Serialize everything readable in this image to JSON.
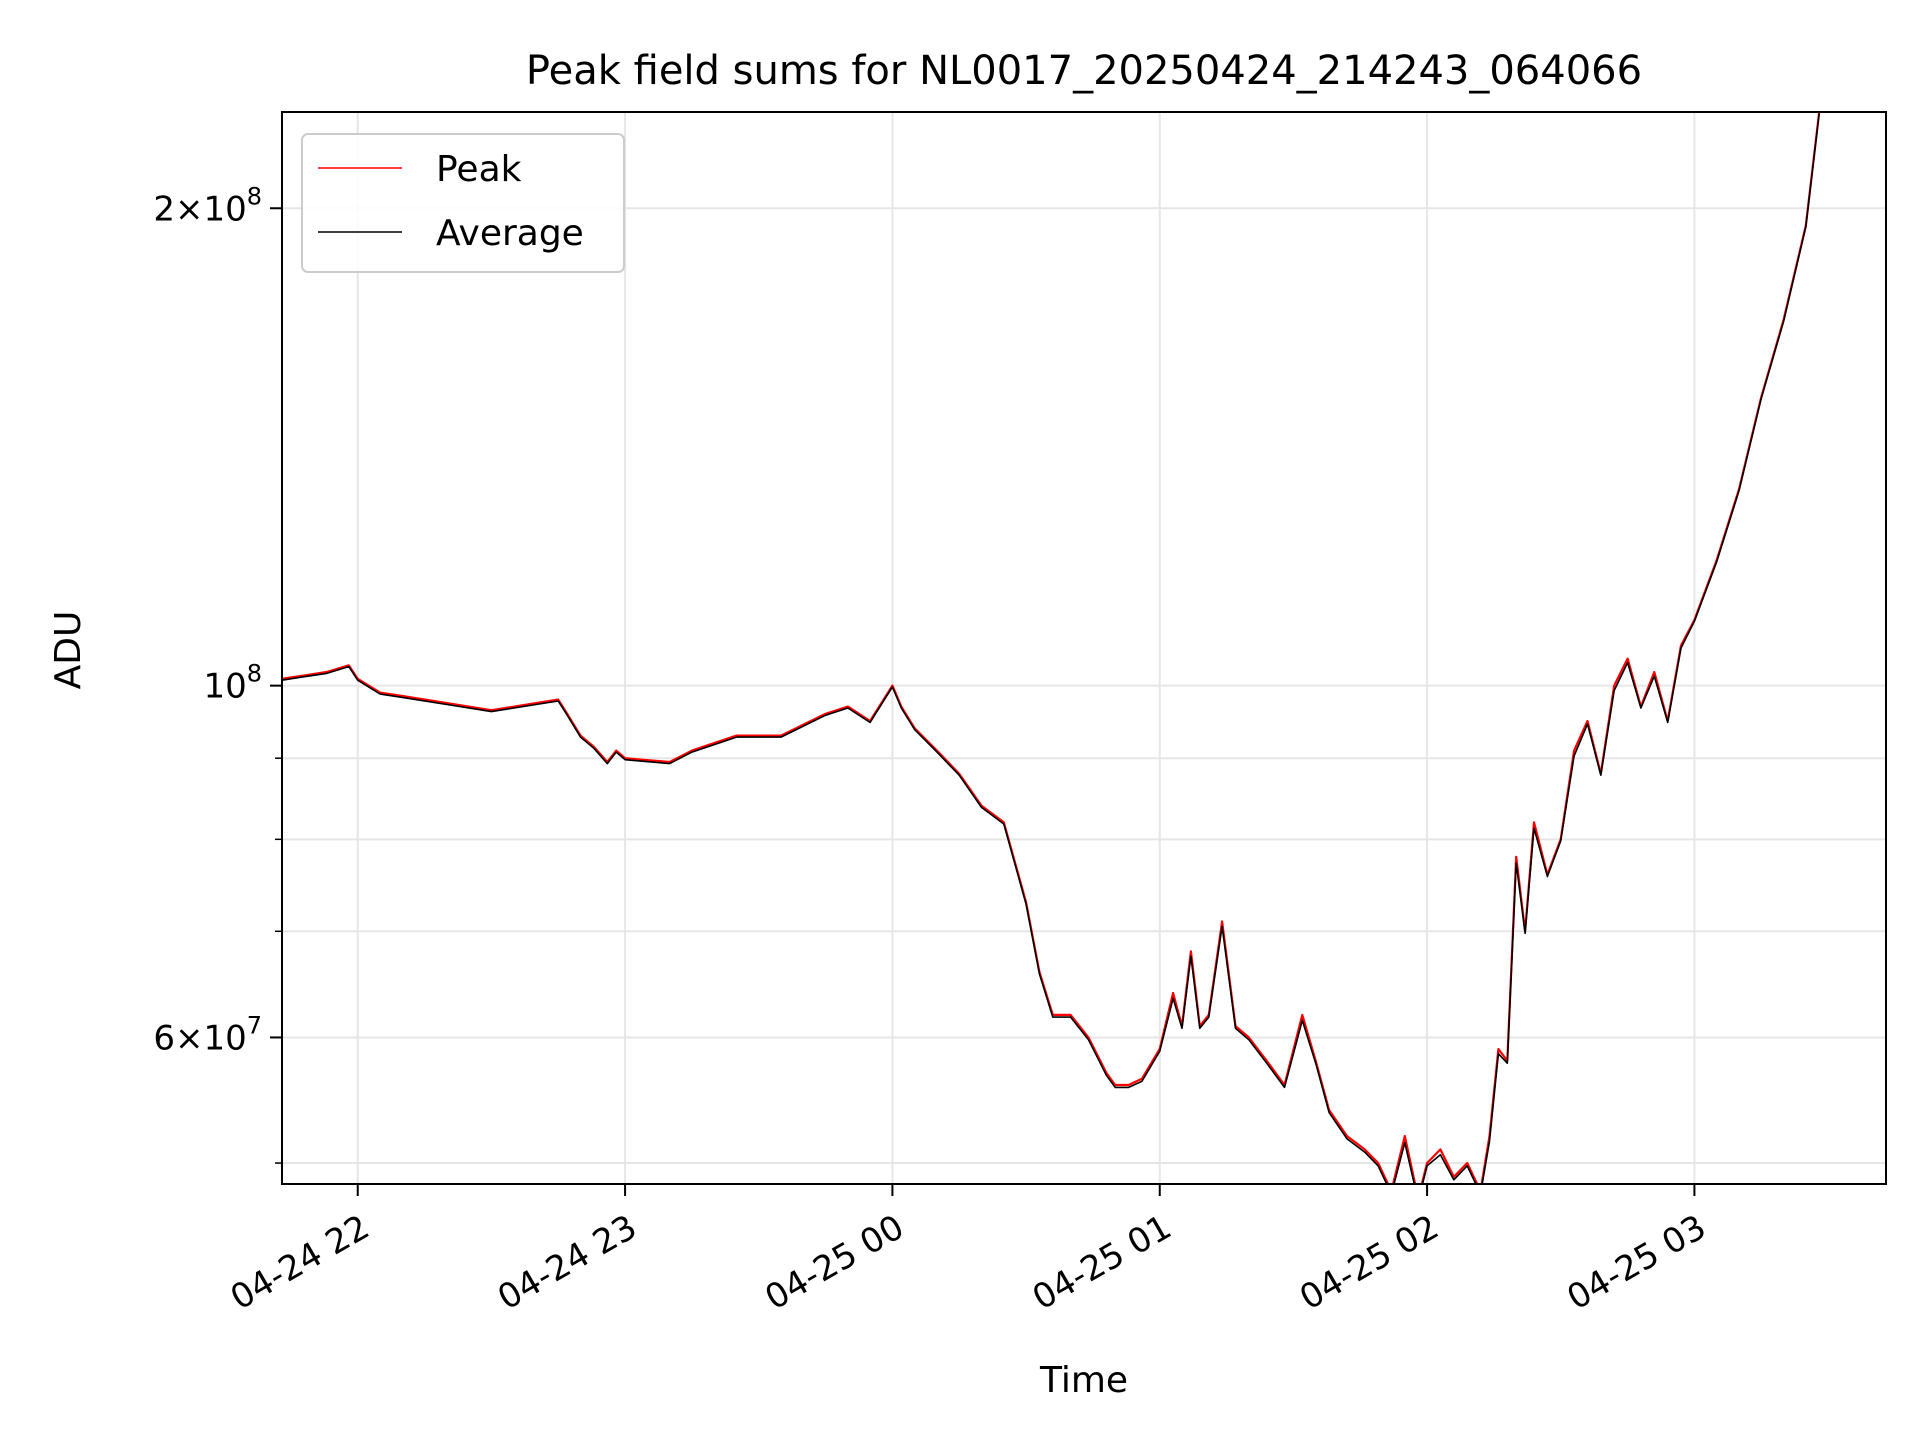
{
  "chart_data": {
    "type": "line",
    "title": "Peak field sums for NL0017_20250424_214243_064066",
    "xlabel": "Time",
    "ylabel": "ADU",
    "x_axis": {
      "type": "datetime",
      "range": [
        "2025-04-24 21:43",
        "2025-04-25 03:43"
      ],
      "ticks": [
        {
          "value": "2025-04-24 22:00",
          "label": "04-24 22"
        },
        {
          "value": "2025-04-24 23:00",
          "label": "04-24 23"
        },
        {
          "value": "2025-04-25 00:00",
          "label": "04-25 00"
        },
        {
          "value": "2025-04-25 01:00",
          "label": "04-25 01"
        },
        {
          "value": "2025-04-25 02:00",
          "label": "04-25 02"
        },
        {
          "value": "2025-04-25 03:00",
          "label": "04-25 03"
        }
      ]
    },
    "y_axis": {
      "scale": "log",
      "range": [
        48500000,
        230000000
      ],
      "major_ticks": [
        {
          "value": 60000000,
          "mantissa": "6",
          "exponent": "7"
        },
        {
          "value": 100000000,
          "mantissa": "",
          "exponent": "8"
        },
        {
          "value": 200000000,
          "mantissa": "2",
          "exponent": "8"
        }
      ],
      "minor_ticks": [
        50000000,
        70000000,
        80000000,
        90000000
      ]
    },
    "grid": true,
    "legend_position": "upper-left",
    "series": [
      {
        "name": "Peak",
        "color": "#ff0000",
        "x": [
          "2025-04-24 21:43",
          "2025-04-24 21:48",
          "2025-04-24 21:53",
          "2025-04-24 21:58",
          "2025-04-24 22:00",
          "2025-04-24 22:05",
          "2025-04-24 22:10",
          "2025-04-24 22:20",
          "2025-04-24 22:30",
          "2025-04-24 22:40",
          "2025-04-24 22:45",
          "2025-04-24 22:47",
          "2025-04-24 22:50",
          "2025-04-24 22:53",
          "2025-04-24 22:56",
          "2025-04-24 22:58",
          "2025-04-24 23:00",
          "2025-04-24 23:10",
          "2025-04-24 23:15",
          "2025-04-24 23:25",
          "2025-04-24 23:35",
          "2025-04-24 23:45",
          "2025-04-24 23:50",
          "2025-04-24 23:55",
          "2025-04-25 00:00",
          "2025-04-25 00:02",
          "2025-04-25 00:05",
          "2025-04-25 00:10",
          "2025-04-25 00:15",
          "2025-04-25 00:20",
          "2025-04-25 00:25",
          "2025-04-25 00:30",
          "2025-04-25 00:33",
          "2025-04-25 00:36",
          "2025-04-25 00:40",
          "2025-04-25 00:44",
          "2025-04-25 00:48",
          "2025-04-25 00:50",
          "2025-04-25 00:53",
          "2025-04-25 00:56",
          "2025-04-25 01:00",
          "2025-04-25 01:03",
          "2025-04-25 01:05",
          "2025-04-25 01:07",
          "2025-04-25 01:09",
          "2025-04-25 01:11",
          "2025-04-25 01:14",
          "2025-04-25 01:17",
          "2025-04-25 01:20",
          "2025-04-25 01:24",
          "2025-04-25 01:28",
          "2025-04-25 01:32",
          "2025-04-25 01:35",
          "2025-04-25 01:38",
          "2025-04-25 01:42",
          "2025-04-25 01:46",
          "2025-04-25 01:49",
          "2025-04-25 01:52",
          "2025-04-25 01:55",
          "2025-04-25 01:58",
          "2025-04-25 02:00",
          "2025-04-25 02:03",
          "2025-04-25 02:06",
          "2025-04-25 02:09",
          "2025-04-25 02:12",
          "2025-04-25 02:14",
          "2025-04-25 02:16",
          "2025-04-25 02:18",
          "2025-04-25 02:20",
          "2025-04-25 02:22",
          "2025-04-25 02:24",
          "2025-04-25 02:27",
          "2025-04-25 02:30",
          "2025-04-25 02:33",
          "2025-04-25 02:36",
          "2025-04-25 02:39",
          "2025-04-25 02:42",
          "2025-04-25 02:45",
          "2025-04-25 02:48",
          "2025-04-25 02:51",
          "2025-04-25 02:54",
          "2025-04-25 02:57",
          "2025-04-25 03:00",
          "2025-04-25 03:05",
          "2025-04-25 03:10",
          "2025-04-25 03:15",
          "2025-04-25 03:20",
          "2025-04-25 03:25",
          "2025-04-25 03:28"
        ],
        "values": [
          101000000,
          101500000,
          102000000,
          103000000,
          101000000,
          99000000,
          98500000,
          97500000,
          96500000,
          97500000,
          98000000,
          96000000,
          93000000,
          91500000,
          89500000,
          91000000,
          90000000,
          89500000,
          91000000,
          93000000,
          93000000,
          96000000,
          97000000,
          95000000,
          100000000,
          97000000,
          94000000,
          91000000,
          88000000,
          84000000,
          82000000,
          73000000,
          66000000,
          62000000,
          62000000,
          60000000,
          57000000,
          56000000,
          56000000,
          56500000,
          59000000,
          64000000,
          61000000,
          68000000,
          61000000,
          62000000,
          71000000,
          61000000,
          60000000,
          58000000,
          56000000,
          62000000,
          58000000,
          54000000,
          52000000,
          51000000,
          50000000,
          48000000,
          52000000,
          47500000,
          50000000,
          51000000,
          49000000,
          50000000,
          48000000,
          52000000,
          59000000,
          58000000,
          78000000,
          70000000,
          82000000,
          76000000,
          80000000,
          91000000,
          95000000,
          88000000,
          100000000,
          104000000,
          97000000,
          102000000,
          95000000,
          106000000,
          110000000,
          120000000,
          133000000,
          152000000,
          170000000,
          195000000,
          230000000
        ]
      },
      {
        "name": "Average",
        "color": "#000000",
        "x": [
          "2025-04-24 21:43",
          "2025-04-24 21:48",
          "2025-04-24 21:53",
          "2025-04-24 21:58",
          "2025-04-24 22:00",
          "2025-04-24 22:05",
          "2025-04-24 22:10",
          "2025-04-24 22:20",
          "2025-04-24 22:30",
          "2025-04-24 22:40",
          "2025-04-24 22:45",
          "2025-04-24 22:47",
          "2025-04-24 22:50",
          "2025-04-24 22:53",
          "2025-04-24 22:56",
          "2025-04-24 22:58",
          "2025-04-24 23:00",
          "2025-04-24 23:10",
          "2025-04-24 23:15",
          "2025-04-24 23:25",
          "2025-04-24 23:35",
          "2025-04-24 23:45",
          "2025-04-24 23:50",
          "2025-04-24 23:55",
          "2025-04-25 00:00",
          "2025-04-25 00:02",
          "2025-04-25 00:05",
          "2025-04-25 00:10",
          "2025-04-25 00:15",
          "2025-04-25 00:20",
          "2025-04-25 00:25",
          "2025-04-25 00:30",
          "2025-04-25 00:33",
          "2025-04-25 00:36",
          "2025-04-25 00:40",
          "2025-04-25 00:44",
          "2025-04-25 00:48",
          "2025-04-25 00:50",
          "2025-04-25 00:53",
          "2025-04-25 00:56",
          "2025-04-25 01:00",
          "2025-04-25 01:03",
          "2025-04-25 01:05",
          "2025-04-25 01:07",
          "2025-04-25 01:09",
          "2025-04-25 01:11",
          "2025-04-25 01:14",
          "2025-04-25 01:17",
          "2025-04-25 01:20",
          "2025-04-25 01:24",
          "2025-04-25 01:28",
          "2025-04-25 01:32",
          "2025-04-25 01:35",
          "2025-04-25 01:38",
          "2025-04-25 01:42",
          "2025-04-25 01:46",
          "2025-04-25 01:49",
          "2025-04-25 01:52",
          "2025-04-25 01:55",
          "2025-04-25 01:58",
          "2025-04-25 02:00",
          "2025-04-25 02:03",
          "2025-04-25 02:06",
          "2025-04-25 02:09",
          "2025-04-25 02:12",
          "2025-04-25 02:14",
          "2025-04-25 02:16",
          "2025-04-25 02:18",
          "2025-04-25 02:20",
          "2025-04-25 02:22",
          "2025-04-25 02:24",
          "2025-04-25 02:27",
          "2025-04-25 02:30",
          "2025-04-25 02:33",
          "2025-04-25 02:36",
          "2025-04-25 02:39",
          "2025-04-25 02:42",
          "2025-04-25 02:45",
          "2025-04-25 02:48",
          "2025-04-25 02:51",
          "2025-04-25 02:54",
          "2025-04-25 02:57",
          "2025-04-25 03:00",
          "2025-04-25 03:05",
          "2025-04-25 03:10",
          "2025-04-25 03:15",
          "2025-04-25 03:20",
          "2025-04-25 03:25",
          "2025-04-25 03:28"
        ],
        "values": [
          100800000,
          101300000,
          101800000,
          102800000,
          100800000,
          98800000,
          98300000,
          97300000,
          96300000,
          97300000,
          97800000,
          95800000,
          92800000,
          91300000,
          89300000,
          90800000,
          89800000,
          89300000,
          90800000,
          92800000,
          92800000,
          95800000,
          96800000,
          94800000,
          99800000,
          96800000,
          93800000,
          90800000,
          87800000,
          83800000,
          81800000,
          72800000,
          65800000,
          61800000,
          61800000,
          59800000,
          56800000,
          55800000,
          55800000,
          56300000,
          58800000,
          63500000,
          60800000,
          67500000,
          60800000,
          61800000,
          70500000,
          60800000,
          59800000,
          57800000,
          55800000,
          61500000,
          57800000,
          53800000,
          51800000,
          50800000,
          49800000,
          47800000,
          51500000,
          47300000,
          49800000,
          50600000,
          48800000,
          49800000,
          47800000,
          51600000,
          58600000,
          57800000,
          77300000,
          69800000,
          81300000,
          75800000,
          79800000,
          90300000,
          94600000,
          87800000,
          99300000,
          103400000,
          96800000,
          101400000,
          94800000,
          105600000,
          109800000,
          119700000,
          132700000,
          151700000,
          169600000,
          194600000,
          229500000
        ]
      }
    ]
  }
}
